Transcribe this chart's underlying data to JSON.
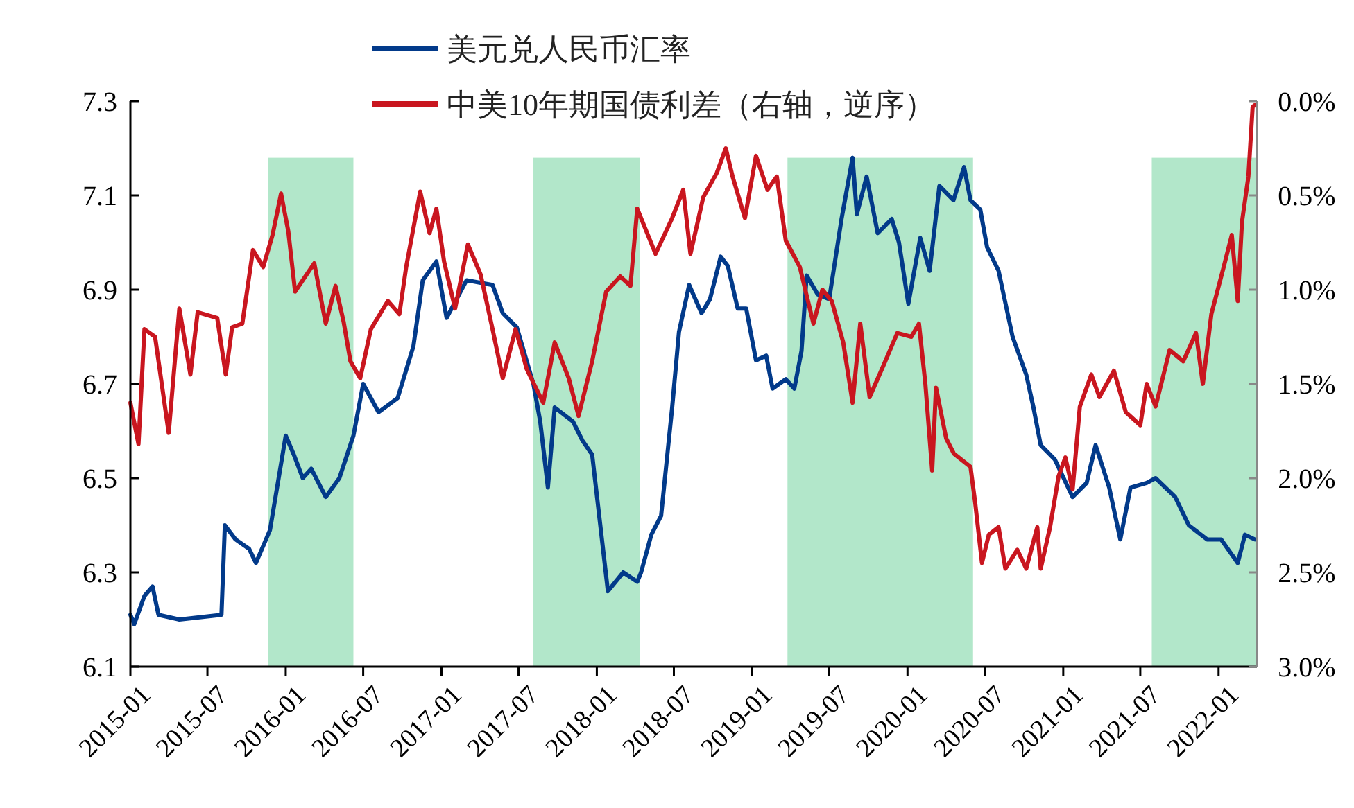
{
  "chart_data": {
    "type": "line",
    "xlim": [
      "2015-01-01",
      "2022-04-01"
    ],
    "xticks": [
      {
        "value": "2015-01-01",
        "label": "2015-01"
      },
      {
        "value": "2015-07-01",
        "label": "2015-07"
      },
      {
        "value": "2016-01-01",
        "label": "2016-01"
      },
      {
        "value": "2016-07-01",
        "label": "2016-07"
      },
      {
        "value": "2017-01-01",
        "label": "2017-01"
      },
      {
        "value": "2017-07-01",
        "label": "2017-07"
      },
      {
        "value": "2018-01-01",
        "label": "2018-01"
      },
      {
        "value": "2018-07-01",
        "label": "2018-07"
      },
      {
        "value": "2019-01-01",
        "label": "2019-01"
      },
      {
        "value": "2019-07-01",
        "label": "2019-07"
      },
      {
        "value": "2020-01-01",
        "label": "2020-01"
      },
      {
        "value": "2020-07-01",
        "label": "2020-07"
      },
      {
        "value": "2021-01-01",
        "label": "2021-01"
      },
      {
        "value": "2021-07-01",
        "label": "2021-07"
      },
      {
        "value": "2022-01-01",
        "label": "2022-01"
      }
    ],
    "ylim": [
      6.1,
      7.3
    ],
    "yticks": [
      {
        "value": 6.1,
        "label": "6.1"
      },
      {
        "value": 6.3,
        "label": "6.3"
      },
      {
        "value": 6.5,
        "label": "6.5"
      },
      {
        "value": 6.7,
        "label": "6.7"
      },
      {
        "value": 6.9,
        "label": "6.9"
      },
      {
        "value": 7.1,
        "label": "7.1"
      },
      {
        "value": 7.3,
        "label": "7.3"
      }
    ],
    "y2lim": [
      3,
      0
    ],
    "y2ticks": [
      {
        "value": 0,
        "label": "0.0%"
      },
      {
        "value": 0.5,
        "label": "0.5%"
      },
      {
        "value": 1,
        "label": "1.0%"
      },
      {
        "value": 1.5,
        "label": "1.5%"
      },
      {
        "value": 2,
        "label": "2.0%"
      },
      {
        "value": 2.5,
        "label": "2.5%"
      },
      {
        "value": 3,
        "label": "3.0%"
      }
    ],
    "legend": "top",
    "grid": false,
    "series": [
      {
        "name": "美元兑人民币汇率",
        "color": "#023a8a",
        "x": [
          "2015-01-01",
          "2015-01-10",
          "2015-02-03",
          "2015-02-22",
          "2015-03-08",
          "2015-04-26",
          "2015-08-03",
          "2015-08-11",
          "2015-09-05",
          "2015-10-07",
          "2015-10-23",
          "2015-11-25",
          "2016-01-01",
          "2016-01-20",
          "2016-02-10",
          "2016-03-01",
          "2016-04-04",
          "2016-05-06",
          "2016-06-08",
          "2016-07-01",
          "2016-08-06",
          "2016-09-20",
          "2016-10-27",
          "2016-11-18",
          "2016-12-20",
          "2017-01-13",
          "2017-03-01",
          "2017-05-01",
          "2017-05-25",
          "2017-06-27",
          "2017-08-05",
          "2017-08-21",
          "2017-09-08",
          "2017-09-24",
          "2017-11-06",
          "2017-11-28",
          "2017-12-21",
          "2018-01-27",
          "2018-03-04",
          "2018-04-06",
          "2018-04-15",
          "2018-05-09",
          "2018-06-01",
          "2018-06-27",
          "2018-07-13",
          "2018-08-06",
          "2018-09-04",
          "2018-09-24",
          "2018-10-19",
          "2018-11-05",
          "2018-11-28",
          "2018-12-18",
          "2019-01-10",
          "2019-02-03",
          "2019-02-18",
          "2019-03-21",
          "2019-04-10",
          "2019-04-27",
          "2019-05-09",
          "2019-06-04",
          "2019-07-01",
          "2019-07-30",
          "2019-08-25",
          "2019-09-04",
          "2019-09-27",
          "2019-10-23",
          "2019-11-25",
          "2019-12-12",
          "2020-01-03",
          "2020-01-31",
          "2020-02-22",
          "2020-03-16",
          "2020-04-18",
          "2020-05-13",
          "2020-05-28",
          "2020-06-20",
          "2020-07-06",
          "2020-08-02",
          "2020-09-04",
          "2020-10-06",
          "2020-10-23",
          "2020-11-09",
          "2020-12-12",
          "2021-01-23",
          "2021-02-25",
          "2021-03-18",
          "2021-04-19",
          "2021-05-15",
          "2021-06-08",
          "2021-07-16",
          "2021-08-06",
          "2021-09-21",
          "2021-10-23",
          "2021-12-05",
          "2022-01-07",
          "2022-02-15",
          "2022-03-04",
          "2022-03-27"
        ],
        "values": [
          6.21,
          6.19,
          6.25,
          6.27,
          6.21,
          6.2,
          6.21,
          6.4,
          6.37,
          6.35,
          6.32,
          6.39,
          6.59,
          6.55,
          6.5,
          6.52,
          6.46,
          6.5,
          6.59,
          6.7,
          6.64,
          6.67,
          6.78,
          6.92,
          6.96,
          6.84,
          6.92,
          6.91,
          6.85,
          6.82,
          6.7,
          6.62,
          6.48,
          6.65,
          6.62,
          6.58,
          6.55,
          6.26,
          6.3,
          6.28,
          6.3,
          6.38,
          6.42,
          6.65,
          6.81,
          6.91,
          6.85,
          6.88,
          6.97,
          6.95,
          6.86,
          6.86,
          6.75,
          6.76,
          6.69,
          6.71,
          6.69,
          6.77,
          6.93,
          6.89,
          6.88,
          7.05,
          7.18,
          7.06,
          7.14,
          7.02,
          7.05,
          7.0,
          6.87,
          7.01,
          6.94,
          7.12,
          7.09,
          7.16,
          7.09,
          7.07,
          6.99,
          6.94,
          6.8,
          6.72,
          6.65,
          6.57,
          6.54,
          6.46,
          6.49,
          6.57,
          6.48,
          6.37,
          6.48,
          6.49,
          6.5,
          6.46,
          6.4,
          6.37,
          6.37,
          6.32,
          6.38,
          6.37
        ]
      },
      {
        "name": "中美10年期国债利差（右轴，逆序）",
        "color": "#c9161f",
        "axis": "y2",
        "x": [
          "2015-01-01",
          "2015-01-20",
          "2015-02-03",
          "2015-02-28",
          "2015-04-01",
          "2015-04-26",
          "2015-05-22",
          "2015-06-08",
          "2015-07-24",
          "2015-08-13",
          "2015-08-28",
          "2015-09-21",
          "2015-10-16",
          "2015-11-09",
          "2015-12-01",
          "2015-12-21",
          "2016-01-07",
          "2016-01-23",
          "2016-03-08",
          "2016-04-04",
          "2016-04-27",
          "2016-05-16",
          "2016-06-01",
          "2016-06-24",
          "2016-07-19",
          "2016-08-28",
          "2016-09-24",
          "2016-10-10",
          "2016-11-12",
          "2016-12-04",
          "2016-12-20",
          "2017-01-07",
          "2017-02-02",
          "2017-03-04",
          "2017-04-03",
          "2017-05-01",
          "2017-05-25",
          "2017-06-24",
          "2017-07-13",
          "2017-07-20",
          "2017-08-28",
          "2017-09-24",
          "2017-10-27",
          "2017-11-19",
          "2017-12-21",
          "2018-01-23",
          "2018-02-25",
          "2018-03-21",
          "2018-04-06",
          "2018-05-19",
          "2018-06-27",
          "2018-07-23",
          "2018-08-09",
          "2018-09-08",
          "2018-10-10",
          "2018-10-31",
          "2018-11-16",
          "2018-12-15",
          "2019-01-10",
          "2019-02-06",
          "2019-02-28",
          "2019-03-21",
          "2019-04-23",
          "2019-05-25",
          "2019-06-15",
          "2019-07-07",
          "2019-08-03",
          "2019-08-25",
          "2019-09-12",
          "2019-10-04",
          "2019-11-06",
          "2019-12-08",
          "2020-01-10",
          "2020-01-28",
          "2020-02-12",
          "2020-02-28",
          "2020-03-08",
          "2020-04-01",
          "2020-04-19",
          "2020-05-28",
          "2020-06-08",
          "2020-06-24",
          "2020-07-10",
          "2020-08-02",
          "2020-08-18",
          "2020-09-15",
          "2020-10-06",
          "2020-11-01",
          "2020-11-09",
          "2020-12-01",
          "2020-12-21",
          "2021-01-06",
          "2021-01-23",
          "2021-02-09",
          "2021-03-08",
          "2021-03-27",
          "2021-04-30",
          "2021-05-28",
          "2021-07-01",
          "2021-07-16",
          "2021-08-06",
          "2021-09-08",
          "2021-10-10",
          "2021-11-09",
          "2021-11-25",
          "2021-12-15",
          "2022-01-13",
          "2022-02-01",
          "2022-02-15",
          "2022-02-25",
          "2022-03-12",
          "2022-03-22",
          "2022-03-28"
        ],
        "values": [
          1.6,
          1.82,
          1.21,
          1.25,
          1.76,
          1.1,
          1.45,
          1.12,
          1.15,
          1.45,
          1.2,
          1.18,
          0.79,
          0.88,
          0.71,
          0.49,
          0.69,
          1.01,
          0.86,
          1.18,
          0.98,
          1.17,
          1.38,
          1.47,
          1.21,
          1.06,
          1.13,
          0.88,
          0.48,
          0.7,
          0.57,
          0.85,
          1.1,
          0.76,
          0.92,
          1.21,
          1.47,
          1.21,
          1.36,
          1.42,
          1.6,
          1.28,
          1.47,
          1.67,
          1.38,
          1.01,
          0.93,
          0.98,
          0.57,
          0.81,
          0.62,
          0.47,
          0.81,
          0.51,
          0.38,
          0.25,
          0.4,
          0.62,
          0.29,
          0.47,
          0.4,
          0.74,
          0.88,
          1.18,
          1.0,
          1.06,
          1.28,
          1.6,
          1.18,
          1.57,
          1.4,
          1.23,
          1.25,
          1.18,
          1.5,
          1.96,
          1.52,
          1.79,
          1.87,
          1.94,
          2.13,
          2.45,
          2.3,
          2.26,
          2.48,
          2.38,
          2.48,
          2.26,
          2.48,
          2.26,
          1.99,
          1.89,
          2.06,
          1.62,
          1.45,
          1.57,
          1.43,
          1.65,
          1.72,
          1.5,
          1.62,
          1.32,
          1.38,
          1.23,
          1.5,
          1.13,
          0.88,
          0.71,
          1.06,
          0.64,
          0.4,
          0.03,
          0.02
        ]
      }
    ],
    "bands": [
      {
        "axis": "x",
        "from": "2015-11-20",
        "to": "2016-06-08",
        "color": "#00b050"
      },
      {
        "axis": "x",
        "from": "2017-08-05",
        "to": "2018-04-12",
        "color": "#00b050"
      },
      {
        "axis": "x",
        "from": "2019-03-25",
        "to": "2020-06-03",
        "color": "#00b050"
      },
      {
        "axis": "x",
        "from": "2021-07-28",
        "to": "2022-04-01",
        "color": "#00b050"
      }
    ]
  }
}
